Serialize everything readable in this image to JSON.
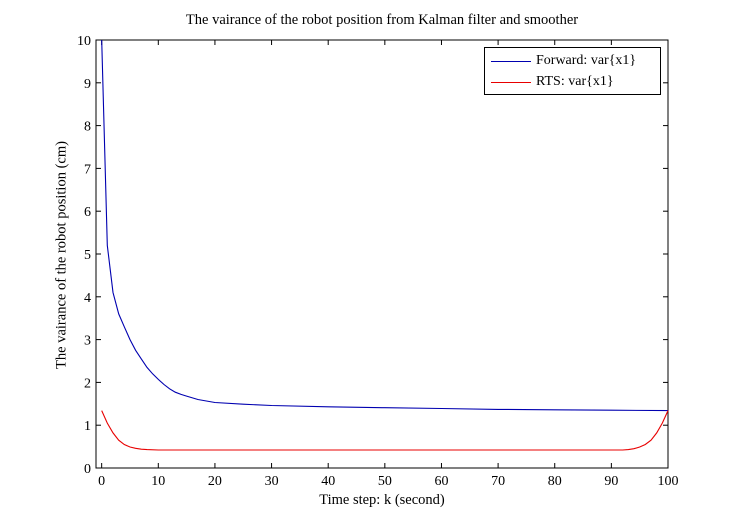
{
  "chart_data": {
    "type": "line",
    "title": "The vairance of the robot position from Kalman filter and smoother",
    "xlabel": "Time step: k (second)",
    "ylabel": "The vairance of the robot position (cm)",
    "xlim": [
      -1,
      100
    ],
    "ylim": [
      0,
      10
    ],
    "xticks": [
      0,
      10,
      20,
      30,
      40,
      50,
      60,
      70,
      80,
      90,
      100
    ],
    "yticks": [
      0,
      1,
      2,
      3,
      4,
      5,
      6,
      7,
      8,
      9,
      10
    ],
    "grid": false,
    "legend_position": "top-right",
    "series": [
      {
        "name": "Forward: var{x1}",
        "color": "#0000b0",
        "x": [
          0,
          1,
          2,
          3,
          4,
          5,
          6,
          7,
          8,
          9,
          10,
          11,
          12,
          13,
          14,
          15,
          17,
          20,
          25,
          30,
          40,
          50,
          60,
          70,
          80,
          90,
          100
        ],
        "y": [
          10.0,
          5.2,
          4.1,
          3.6,
          3.3,
          3.0,
          2.75,
          2.55,
          2.35,
          2.2,
          2.07,
          1.95,
          1.85,
          1.77,
          1.72,
          1.68,
          1.6,
          1.53,
          1.49,
          1.46,
          1.43,
          1.41,
          1.39,
          1.37,
          1.36,
          1.35,
          1.34
        ]
      },
      {
        "name": "RTS: var{x1}",
        "color": "#e80000",
        "x": [
          0,
          1,
          2,
          3,
          4,
          5,
          6,
          7,
          8,
          10,
          20,
          50,
          80,
          90,
          92,
          93,
          94,
          95,
          96,
          97,
          98,
          99,
          100
        ],
        "y": [
          1.34,
          1.05,
          0.82,
          0.65,
          0.55,
          0.49,
          0.46,
          0.44,
          0.43,
          0.42,
          0.42,
          0.42,
          0.42,
          0.42,
          0.42,
          0.43,
          0.45,
          0.49,
          0.55,
          0.65,
          0.82,
          1.05,
          1.34
        ]
      }
    ]
  }
}
